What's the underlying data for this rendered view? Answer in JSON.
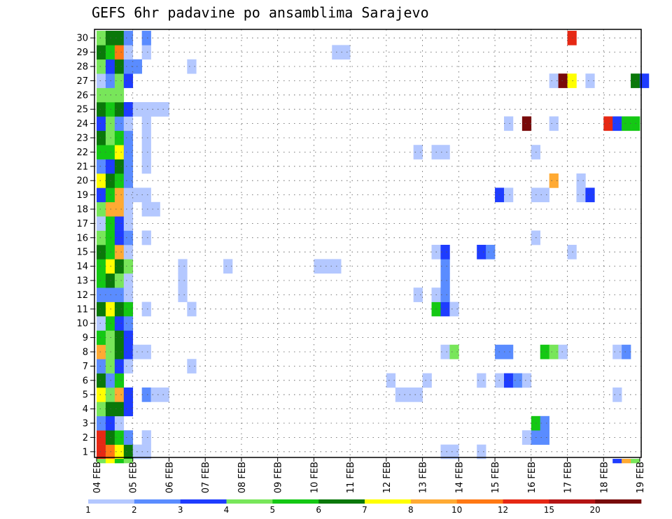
{
  "chart_data": {
    "type": "heatmap",
    "title": "GEFS 6hr padavine po ansamblima Sarajevo",
    "y_members": [
      1,
      2,
      3,
      4,
      5,
      6,
      7,
      8,
      9,
      10,
      11,
      12,
      13,
      14,
      15,
      16,
      17,
      18,
      19,
      20,
      21,
      22,
      23,
      24,
      25,
      26,
      27,
      28,
      29,
      30
    ],
    "x_tick_labels": [
      "04 FEB",
      "05 FEB",
      "06 FEB",
      "07 FEB",
      "08 FEB",
      "09 FEB",
      "10 FEB",
      "11 FEB",
      "12 FEB",
      "13 FEB",
      "14 FEB",
      "15 FEB",
      "16 FEB",
      "17 FEB",
      "18 FEB",
      "19 FEB"
    ],
    "x_step_hours": 6,
    "steps_per_day": 4,
    "grid": "dotted",
    "colorbar": {
      "position": "bottom",
      "labels": [
        "1",
        "2",
        "3",
        "4",
        "5",
        "6",
        "7",
        "8",
        "10",
        "12",
        "15",
        "20"
      ],
      "colors": [
        "#b4c8ff",
        "#5a8cff",
        "#1e3cff",
        "#78e65a",
        "#14c814",
        "#0a780a",
        "#ffff00",
        "#ffaa33",
        "#ff7814",
        "#e62814",
        "#b41414",
        "#780a0a"
      ]
    },
    "cells": [
      {
        "m": 1,
        "c": [
          [
            0,
            10
          ],
          [
            1,
            9
          ],
          [
            2,
            7
          ],
          [
            3,
            6
          ],
          [
            4,
            1
          ],
          [
            5,
            1
          ],
          [
            38,
            1
          ],
          [
            39,
            1
          ],
          [
            42,
            1
          ]
        ]
      },
      {
        "m": 2,
        "c": [
          [
            0,
            10
          ],
          [
            1,
            6
          ],
          [
            2,
            5
          ],
          [
            3,
            2
          ],
          [
            5,
            1
          ],
          [
            47,
            1
          ],
          [
            48,
            2
          ],
          [
            49,
            2
          ]
        ]
      },
      {
        "m": 3,
        "c": [
          [
            0,
            2
          ],
          [
            1,
            3
          ],
          [
            2,
            1
          ],
          [
            48,
            5
          ],
          [
            49,
            2
          ]
        ]
      },
      {
        "m": 4,
        "c": [
          [
            0,
            4
          ],
          [
            1,
            6
          ],
          [
            2,
            6
          ],
          [
            3,
            3
          ]
        ]
      },
      {
        "m": 5,
        "c": [
          [
            0,
            7
          ],
          [
            1,
            4
          ],
          [
            2,
            8
          ],
          [
            3,
            3
          ],
          [
            5,
            2
          ],
          [
            6,
            1
          ],
          [
            7,
            1
          ],
          [
            33,
            1
          ],
          [
            34,
            1
          ],
          [
            35,
            1
          ],
          [
            57,
            1
          ]
        ]
      },
      {
        "m": 6,
        "c": [
          [
            0,
            6
          ],
          [
            1,
            2
          ],
          [
            2,
            5
          ],
          [
            32,
            1
          ],
          [
            36,
            1
          ],
          [
            42,
            1
          ],
          [
            44,
            1
          ],
          [
            45,
            3
          ],
          [
            46,
            2
          ],
          [
            47,
            1
          ]
        ]
      },
      {
        "m": 7,
        "c": [
          [
            0,
            2
          ],
          [
            1,
            4
          ],
          [
            2,
            3
          ],
          [
            3,
            1
          ],
          [
            10,
            1
          ]
        ]
      },
      {
        "m": 8,
        "c": [
          [
            0,
            8
          ],
          [
            1,
            4
          ],
          [
            2,
            6
          ],
          [
            3,
            3
          ],
          [
            4,
            1
          ],
          [
            5,
            1
          ],
          [
            38,
            1
          ],
          [
            39,
            4
          ],
          [
            44,
            2
          ],
          [
            45,
            2
          ],
          [
            49,
            5
          ],
          [
            50,
            4
          ],
          [
            51,
            1
          ],
          [
            57,
            1
          ],
          [
            58,
            2
          ]
        ]
      },
      {
        "m": 9,
        "c": [
          [
            0,
            5
          ],
          [
            1,
            4
          ],
          [
            2,
            6
          ],
          [
            3,
            3
          ]
        ]
      },
      {
        "m": 10,
        "c": [
          [
            0,
            1
          ],
          [
            1,
            5
          ],
          [
            2,
            3
          ],
          [
            3,
            2
          ]
        ]
      },
      {
        "m": 11,
        "c": [
          [
            0,
            6
          ],
          [
            1,
            7
          ],
          [
            2,
            6
          ],
          [
            3,
            5
          ],
          [
            5,
            1
          ],
          [
            10,
            1
          ],
          [
            37,
            5
          ],
          [
            38,
            3
          ],
          [
            39,
            1
          ]
        ]
      },
      {
        "m": 12,
        "c": [
          [
            0,
            2
          ],
          [
            1,
            2
          ],
          [
            2,
            2
          ],
          [
            3,
            1
          ],
          [
            9,
            1
          ],
          [
            35,
            1
          ],
          [
            37,
            1
          ],
          [
            38,
            2
          ]
        ]
      },
      {
        "m": 13,
        "c": [
          [
            0,
            5
          ],
          [
            1,
            6
          ],
          [
            2,
            4
          ],
          [
            3,
            1
          ],
          [
            9,
            1
          ],
          [
            38,
            2
          ]
        ]
      },
      {
        "m": 14,
        "c": [
          [
            0,
            5
          ],
          [
            1,
            7
          ],
          [
            2,
            6
          ],
          [
            3,
            4
          ],
          [
            9,
            1
          ],
          [
            14,
            1
          ],
          [
            24,
            1
          ],
          [
            25,
            1
          ],
          [
            26,
            1
          ],
          [
            38,
            2
          ]
        ]
      },
      {
        "m": 15,
        "c": [
          [
            0,
            6
          ],
          [
            1,
            5
          ],
          [
            2,
            8
          ],
          [
            3,
            1
          ],
          [
            37,
            1
          ],
          [
            38,
            3
          ],
          [
            42,
            3
          ],
          [
            43,
            2
          ],
          [
            52,
            1
          ]
        ]
      },
      {
        "m": 16,
        "c": [
          [
            0,
            4
          ],
          [
            1,
            5
          ],
          [
            2,
            3
          ],
          [
            3,
            2
          ],
          [
            5,
            1
          ],
          [
            48,
            1
          ]
        ]
      },
      {
        "m": 17,
        "c": [
          [
            0,
            1
          ],
          [
            1,
            5
          ],
          [
            2,
            3
          ],
          [
            3,
            1
          ]
        ]
      },
      {
        "m": 18,
        "c": [
          [
            0,
            4
          ],
          [
            1,
            8
          ],
          [
            2,
            8
          ],
          [
            3,
            1
          ],
          [
            5,
            1
          ],
          [
            6,
            1
          ]
        ]
      },
      {
        "m": 19,
        "c": [
          [
            0,
            3
          ],
          [
            1,
            5
          ],
          [
            2,
            8
          ],
          [
            3,
            1
          ],
          [
            4,
            1
          ],
          [
            5,
            1
          ],
          [
            44,
            3
          ],
          [
            45,
            1
          ],
          [
            48,
            1
          ],
          [
            49,
            1
          ],
          [
            53,
            1
          ],
          [
            54,
            3
          ]
        ]
      },
      {
        "m": 20,
        "c": [
          [
            0,
            7
          ],
          [
            1,
            6
          ],
          [
            2,
            5
          ],
          [
            3,
            2
          ],
          [
            50,
            8
          ],
          [
            53,
            1
          ]
        ]
      },
      {
        "m": 21,
        "c": [
          [
            0,
            2
          ],
          [
            1,
            3
          ],
          [
            2,
            6
          ],
          [
            3,
            2
          ],
          [
            5,
            1
          ]
        ]
      },
      {
        "m": 22,
        "c": [
          [
            0,
            5
          ],
          [
            1,
            5
          ],
          [
            2,
            7
          ],
          [
            3,
            2
          ],
          [
            5,
            1
          ],
          [
            35,
            1
          ],
          [
            37,
            1
          ],
          [
            38,
            1
          ],
          [
            48,
            1
          ]
        ]
      },
      {
        "m": 23,
        "c": [
          [
            0,
            6
          ],
          [
            1,
            4
          ],
          [
            2,
            5
          ],
          [
            3,
            2
          ],
          [
            5,
            1
          ]
        ]
      },
      {
        "m": 24,
        "c": [
          [
            0,
            3
          ],
          [
            1,
            4
          ],
          [
            2,
            2
          ],
          [
            3,
            1
          ],
          [
            5,
            1
          ],
          [
            45,
            1
          ],
          [
            47,
            12
          ],
          [
            50,
            1
          ],
          [
            56,
            10
          ],
          [
            57,
            3
          ],
          [
            58,
            5
          ],
          [
            59,
            5
          ]
        ]
      },
      {
        "m": 25,
        "c": [
          [
            0,
            6
          ],
          [
            1,
            5
          ],
          [
            2,
            6
          ],
          [
            3,
            3
          ],
          [
            4,
            1
          ],
          [
            5,
            1
          ],
          [
            6,
            1
          ],
          [
            7,
            1
          ]
        ]
      },
      {
        "m": 26,
        "c": [
          [
            0,
            4
          ],
          [
            1,
            4
          ],
          [
            2,
            4
          ]
        ]
      },
      {
        "m": 27,
        "c": [
          [
            0,
            1
          ],
          [
            1,
            2
          ],
          [
            2,
            4
          ],
          [
            3,
            3
          ],
          [
            50,
            1
          ],
          [
            51,
            12
          ],
          [
            52,
            7
          ],
          [
            54,
            1
          ],
          [
            59,
            6
          ],
          [
            60,
            3
          ]
        ]
      },
      {
        "m": 28,
        "c": [
          [
            0,
            4
          ],
          [
            1,
            3
          ],
          [
            2,
            6
          ],
          [
            3,
            2
          ],
          [
            4,
            2
          ],
          [
            10,
            1
          ]
        ]
      },
      {
        "m": 29,
        "c": [
          [
            0,
            6
          ],
          [
            1,
            5
          ],
          [
            2,
            9
          ],
          [
            3,
            1
          ],
          [
            5,
            1
          ],
          [
            26,
            1
          ],
          [
            27,
            1
          ]
        ]
      },
      {
        "m": 30,
        "c": [
          [
            0,
            4
          ],
          [
            1,
            6
          ],
          [
            2,
            6
          ],
          [
            3,
            2
          ],
          [
            5,
            2
          ],
          [
            52,
            10
          ]
        ]
      },
      {
        "m": 0,
        "c": [
          [
            0,
            4
          ],
          [
            1,
            7
          ],
          [
            2,
            5
          ],
          [
            3,
            4
          ],
          [
            57,
            3
          ],
          [
            58,
            8
          ],
          [
            59,
            4
          ]
        ]
      }
    ]
  }
}
